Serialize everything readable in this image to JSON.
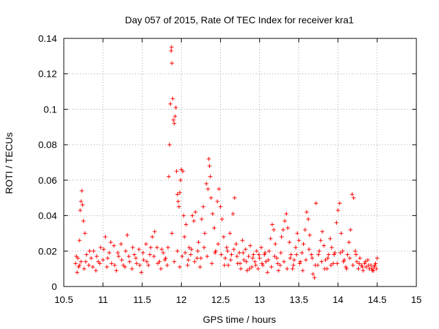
{
  "chart_data": {
    "type": "scatter",
    "title": "Day 057 of 2015, Rate Of TEC Index for receiver kra1",
    "xlabel": "GPS time / hours",
    "ylabel": "ROTI / TECUs",
    "xlim": [
      10.5,
      15
    ],
    "ylim": [
      0,
      0.14
    ],
    "xticks": [
      10.5,
      11,
      11.5,
      12,
      12.5,
      13,
      13.5,
      14,
      14.5,
      15
    ],
    "xtick_labels": [
      "10.5",
      "11",
      "11.5",
      "12",
      "12.5",
      "13",
      "13.5",
      "14",
      "14.5",
      "15"
    ],
    "yticks": [
      0,
      0.02,
      0.04,
      0.06,
      0.08,
      0.1,
      0.12,
      0.14
    ],
    "ytick_labels": [
      "0",
      "0.02",
      "0.04",
      "0.06",
      "0.08",
      "0.1",
      "0.12",
      "0.14"
    ],
    "grid": true,
    "marker": "+",
    "color": "#ff0000",
    "series": [
      {
        "name": "ROTI",
        "points": [
          [
            10.65,
            0.013
          ],
          [
            10.67,
            0.008
          ],
          [
            10.68,
            0.016
          ],
          [
            10.7,
            0.026
          ],
          [
            10.71,
            0.043
          ],
          [
            10.72,
            0.048
          ],
          [
            10.73,
            0.054
          ],
          [
            10.74,
            0.046
          ],
          [
            10.75,
            0.037
          ],
          [
            10.77,
            0.03
          ],
          [
            10.69,
            0.011
          ],
          [
            10.72,
            0.014
          ],
          [
            10.76,
            0.01
          ],
          [
            10.79,
            0.018
          ],
          [
            10.82,
            0.012
          ],
          [
            10.85,
            0.016
          ],
          [
            10.88,
            0.02
          ],
          [
            10.91,
            0.009
          ],
          [
            10.94,
            0.014
          ],
          [
            10.97,
            0.022
          ],
          [
            11.0,
            0.015
          ],
          [
            11.03,
            0.028
          ],
          [
            11.05,
            0.011
          ],
          [
            11.08,
            0.019
          ],
          [
            11.11,
            0.013
          ],
          [
            11.14,
            0.023
          ],
          [
            11.17,
            0.009
          ],
          [
            11.2,
            0.017
          ],
          [
            11.23,
            0.024
          ],
          [
            11.26,
            0.012
          ],
          [
            11.29,
            0.02
          ],
          [
            11.31,
            0.029
          ],
          [
            11.34,
            0.014
          ],
          [
            11.37,
            0.01
          ],
          [
            11.4,
            0.018
          ],
          [
            11.43,
            0.013
          ],
          [
            11.46,
            0.021
          ],
          [
            11.49,
            0.008
          ],
          [
            11.52,
            0.015
          ],
          [
            11.55,
            0.024
          ],
          [
            11.58,
            0.012
          ],
          [
            11.6,
            0.018
          ],
          [
            11.63,
            0.028
          ],
          [
            11.66,
            0.031
          ],
          [
            11.69,
            0.022
          ],
          [
            11.72,
            0.014
          ],
          [
            11.74,
            0.01
          ],
          [
            11.77,
            0.019
          ],
          [
            11.8,
            0.016
          ],
          [
            11.82,
            0.012
          ],
          [
            11.84,
            0.062
          ],
          [
            11.85,
            0.08
          ],
          [
            11.86,
            0.103
          ],
          [
            11.87,
            0.133
          ],
          [
            11.875,
            0.135
          ],
          [
            11.88,
            0.126
          ],
          [
            11.89,
            0.106
          ],
          [
            11.9,
            0.094
          ],
          [
            11.91,
            0.092
          ],
          [
            11.92,
            0.096
          ],
          [
            11.93,
            0.101
          ],
          [
            11.94,
            0.065
          ],
          [
            11.95,
            0.052
          ],
          [
            11.96,
            0.048
          ],
          [
            11.97,
            0.045
          ],
          [
            11.98,
            0.053
          ],
          [
            11.99,
            0.06
          ],
          [
            12.0,
            0.066
          ],
          [
            12.02,
            0.065
          ],
          [
            12.03,
            0.04
          ],
          [
            11.83,
            0.022
          ],
          [
            11.88,
            0.03
          ],
          [
            11.91,
            0.014
          ],
          [
            11.95,
            0.02
          ],
          [
            11.98,
            0.011
          ],
          [
            12.01,
            0.017
          ],
          [
            12.04,
            0.028
          ],
          [
            12.06,
            0.035
          ],
          [
            12.08,
            0.012
          ],
          [
            12.1,
            0.022
          ],
          [
            12.12,
            0.018
          ],
          [
            12.14,
            0.04
          ],
          [
            12.16,
            0.037
          ],
          [
            12.18,
            0.042
          ],
          [
            12.2,
            0.016
          ],
          [
            12.22,
            0.025
          ],
          [
            12.24,
            0.011
          ],
          [
            12.26,
            0.038
          ],
          [
            12.28,
            0.045
          ],
          [
            12.3,
            0.03
          ],
          [
            12.32,
            0.058
          ],
          [
            12.34,
            0.055
          ],
          [
            12.35,
            0.072
          ],
          [
            12.36,
            0.068
          ],
          [
            12.37,
            0.062
          ],
          [
            12.38,
            0.05
          ],
          [
            12.4,
            0.041
          ],
          [
            12.42,
            0.033
          ],
          [
            12.44,
            0.02
          ],
          [
            12.46,
            0.048
          ],
          [
            12.48,
            0.055
          ],
          [
            12.5,
            0.045
          ],
          [
            12.52,
            0.038
          ],
          [
            12.54,
            0.028
          ],
          [
            12.56,
            0.016
          ],
          [
            12.58,
            0.022
          ],
          [
            12.6,
            0.012
          ],
          [
            12.62,
            0.03
          ],
          [
            12.64,
            0.018
          ],
          [
            12.66,
            0.041
          ],
          [
            12.68,
            0.05
          ],
          [
            12.7,
            0.024
          ],
          [
            12.72,
            0.013
          ],
          [
            12.74,
            0.019
          ],
          [
            12.76,
            0.01
          ],
          [
            12.78,
            0.026
          ],
          [
            12.8,
            0.015
          ],
          [
            12.82,
            0.021
          ],
          [
            12.84,
            0.009
          ],
          [
            12.86,
            0.017
          ],
          [
            12.88,
            0.023
          ],
          [
            12.9,
            0.011
          ],
          [
            12.92,
            0.018
          ],
          [
            12.94,
            0.014
          ],
          [
            12.96,
            0.02
          ],
          [
            12.98,
            0.01
          ],
          [
            13.0,
            0.016
          ],
          [
            13.02,
            0.022
          ],
          [
            13.04,
            0.012
          ],
          [
            13.06,
            0.018
          ],
          [
            13.08,
            0.014
          ],
          [
            13.1,
            0.008
          ],
          [
            13.12,
            0.02
          ],
          [
            13.14,
            0.027
          ],
          [
            13.16,
            0.035
          ],
          [
            13.18,
            0.032
          ],
          [
            13.2,
            0.024
          ],
          [
            13.22,
            0.016
          ],
          [
            13.24,
            0.009
          ],
          [
            13.26,
            0.012
          ],
          [
            13.28,
            0.028
          ],
          [
            13.3,
            0.032
          ],
          [
            13.32,
            0.037
          ],
          [
            13.34,
            0.041
          ],
          [
            13.36,
            0.033
          ],
          [
            13.38,
            0.025
          ],
          [
            13.4,
            0.018
          ],
          [
            13.42,
            0.01
          ],
          [
            13.44,
            0.015
          ],
          [
            13.46,
            0.022
          ],
          [
            13.48,
            0.03
          ],
          [
            13.5,
            0.026
          ],
          [
            13.52,
            0.014
          ],
          [
            13.54,
            0.019
          ],
          [
            13.56,
            0.024
          ],
          [
            13.58,
            0.032
          ],
          [
            13.6,
            0.042
          ],
          [
            13.62,
            0.038
          ],
          [
            13.64,
            0.029
          ],
          [
            13.66,
            0.018
          ],
          [
            13.68,
            0.007
          ],
          [
            13.7,
            0.005
          ],
          [
            13.72,
            0.047
          ],
          [
            13.74,
            0.012
          ],
          [
            13.76,
            0.02
          ],
          [
            13.78,
            0.026
          ],
          [
            13.8,
            0.031
          ],
          [
            13.82,
            0.023
          ],
          [
            13.84,
            0.015
          ],
          [
            13.86,
            0.01
          ],
          [
            13.88,
            0.018
          ],
          [
            13.9,
            0.027
          ],
          [
            13.92,
            0.022
          ],
          [
            13.94,
            0.013
          ],
          [
            13.96,
            0.019
          ],
          [
            13.98,
            0.036
          ],
          [
            14.0,
            0.043
          ],
          [
            14.02,
            0.047
          ],
          [
            14.04,
            0.03
          ],
          [
            14.06,
            0.02
          ],
          [
            14.08,
            0.015
          ],
          [
            14.1,
            0.011
          ],
          [
            14.12,
            0.018
          ],
          [
            14.14,
            0.025
          ],
          [
            14.16,
            0.032
          ],
          [
            14.18,
            0.052
          ],
          [
            14.2,
            0.05
          ],
          [
            14.22,
            0.02
          ],
          [
            14.24,
            0.014
          ],
          [
            14.26,
            0.01
          ],
          [
            14.28,
            0.016
          ],
          [
            14.3,
            0.012
          ],
          [
            14.32,
            0.009
          ],
          [
            14.34,
            0.013
          ],
          [
            14.36,
            0.011
          ],
          [
            14.38,
            0.015
          ],
          [
            14.4,
            0.01
          ],
          [
            14.42,
            0.012
          ],
          [
            14.44,
            0.009
          ],
          [
            14.46,
            0.011
          ],
          [
            14.48,
            0.013
          ],
          [
            14.5,
            0.016
          ],
          [
            14.49,
            0.01
          ],
          [
            14.47,
            0.012
          ],
          [
            14.45,
            0.009
          ],
          [
            10.66,
            0.017
          ],
          [
            10.7,
            0.012
          ],
          [
            10.78,
            0.014
          ],
          [
            10.83,
            0.02
          ],
          [
            10.87,
            0.011
          ],
          [
            10.92,
            0.017
          ],
          [
            10.96,
            0.013
          ],
          [
            11.01,
            0.021
          ],
          [
            11.06,
            0.016
          ],
          [
            11.1,
            0.025
          ],
          [
            11.15,
            0.012
          ],
          [
            11.19,
            0.019
          ],
          [
            11.24,
            0.015
          ],
          [
            11.28,
            0.011
          ],
          [
            11.33,
            0.017
          ],
          [
            11.38,
            0.022
          ],
          [
            11.42,
            0.016
          ],
          [
            11.47,
            0.012
          ],
          [
            11.51,
            0.019
          ],
          [
            11.56,
            0.014
          ],
          [
            11.61,
            0.022
          ],
          [
            11.65,
            0.017
          ],
          [
            11.7,
            0.013
          ],
          [
            11.75,
            0.021
          ],
          [
            11.79,
            0.015
          ],
          [
            12.05,
            0.019
          ],
          [
            12.09,
            0.015
          ],
          [
            12.13,
            0.021
          ],
          [
            12.17,
            0.014
          ],
          [
            12.21,
            0.02
          ],
          [
            12.25,
            0.016
          ],
          [
            12.29,
            0.022
          ],
          [
            12.33,
            0.017
          ],
          [
            12.39,
            0.013
          ],
          [
            12.43,
            0.019
          ],
          [
            12.47,
            0.024
          ],
          [
            12.51,
            0.018
          ],
          [
            12.55,
            0.012
          ],
          [
            12.59,
            0.02
          ],
          [
            12.63,
            0.015
          ],
          [
            12.67,
            0.021
          ],
          [
            12.71,
            0.017
          ],
          [
            12.75,
            0.013
          ],
          [
            12.79,
            0.019
          ],
          [
            12.83,
            0.014
          ],
          [
            12.87,
            0.01
          ],
          [
            12.91,
            0.016
          ],
          [
            12.95,
            0.012
          ],
          [
            12.99,
            0.018
          ],
          [
            13.03,
            0.013
          ],
          [
            13.07,
            0.019
          ],
          [
            13.11,
            0.015
          ],
          [
            13.15,
            0.011
          ],
          [
            13.19,
            0.017
          ],
          [
            13.23,
            0.013
          ],
          [
            13.27,
            0.019
          ],
          [
            13.31,
            0.014
          ],
          [
            13.35,
            0.01
          ],
          [
            13.39,
            0.016
          ],
          [
            13.43,
            0.012
          ],
          [
            13.47,
            0.018
          ],
          [
            13.51,
            0.013
          ],
          [
            13.55,
            0.009
          ],
          [
            13.59,
            0.015
          ],
          [
            13.63,
            0.021
          ],
          [
            13.67,
            0.016
          ],
          [
            13.71,
            0.012
          ],
          [
            13.75,
            0.018
          ],
          [
            13.79,
            0.014
          ],
          [
            13.83,
            0.01
          ],
          [
            13.87,
            0.016
          ],
          [
            13.91,
            0.012
          ],
          [
            13.95,
            0.018
          ],
          [
            13.99,
            0.013
          ],
          [
            14.03,
            0.019
          ],
          [
            14.07,
            0.014
          ],
          [
            14.11,
            0.01
          ],
          [
            14.15,
            0.016
          ],
          [
            14.19,
            0.012
          ],
          [
            14.23,
            0.018
          ],
          [
            14.27,
            0.013
          ],
          [
            14.31,
            0.011
          ],
          [
            14.35,
            0.014
          ],
          [
            14.39,
            0.012
          ],
          [
            14.43,
            0.01
          ]
        ]
      }
    ]
  }
}
